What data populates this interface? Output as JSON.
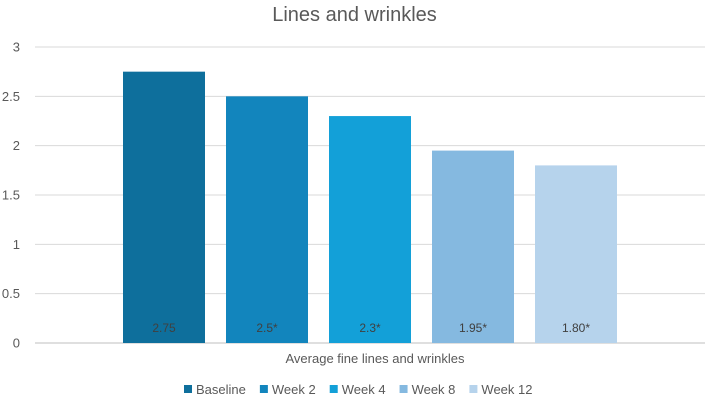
{
  "chart_data": {
    "type": "bar",
    "title": "Lines and wrinkles",
    "xlabel": "Average fine lines and wrinkles",
    "ylabel": "",
    "ylim": [
      0,
      3
    ],
    "yticks": [
      "0",
      "0.5",
      "1",
      "1.5",
      "2",
      "2.5",
      "3"
    ],
    "categories": [
      "Average fine lines and wrinkles"
    ],
    "grid": true,
    "legend_position": "bottom",
    "series": [
      {
        "name": "Baseline",
        "values": [
          2.75
        ],
        "label": "2.75",
        "color": "#0E6F9C"
      },
      {
        "name": "Week 2",
        "values": [
          2.5
        ],
        "label": "2.5*",
        "color": "#1285BD"
      },
      {
        "name": "Week 4",
        "values": [
          2.3
        ],
        "label": "2.3*",
        "color": "#13A0D8"
      },
      {
        "name": "Week 8",
        "values": [
          1.95
        ],
        "label": "1.95*",
        "color": "#85B9E0"
      },
      {
        "name": "Week 12",
        "values": [
          1.8
        ],
        "label": "1.80*",
        "color": "#B6D3EC"
      }
    ]
  }
}
